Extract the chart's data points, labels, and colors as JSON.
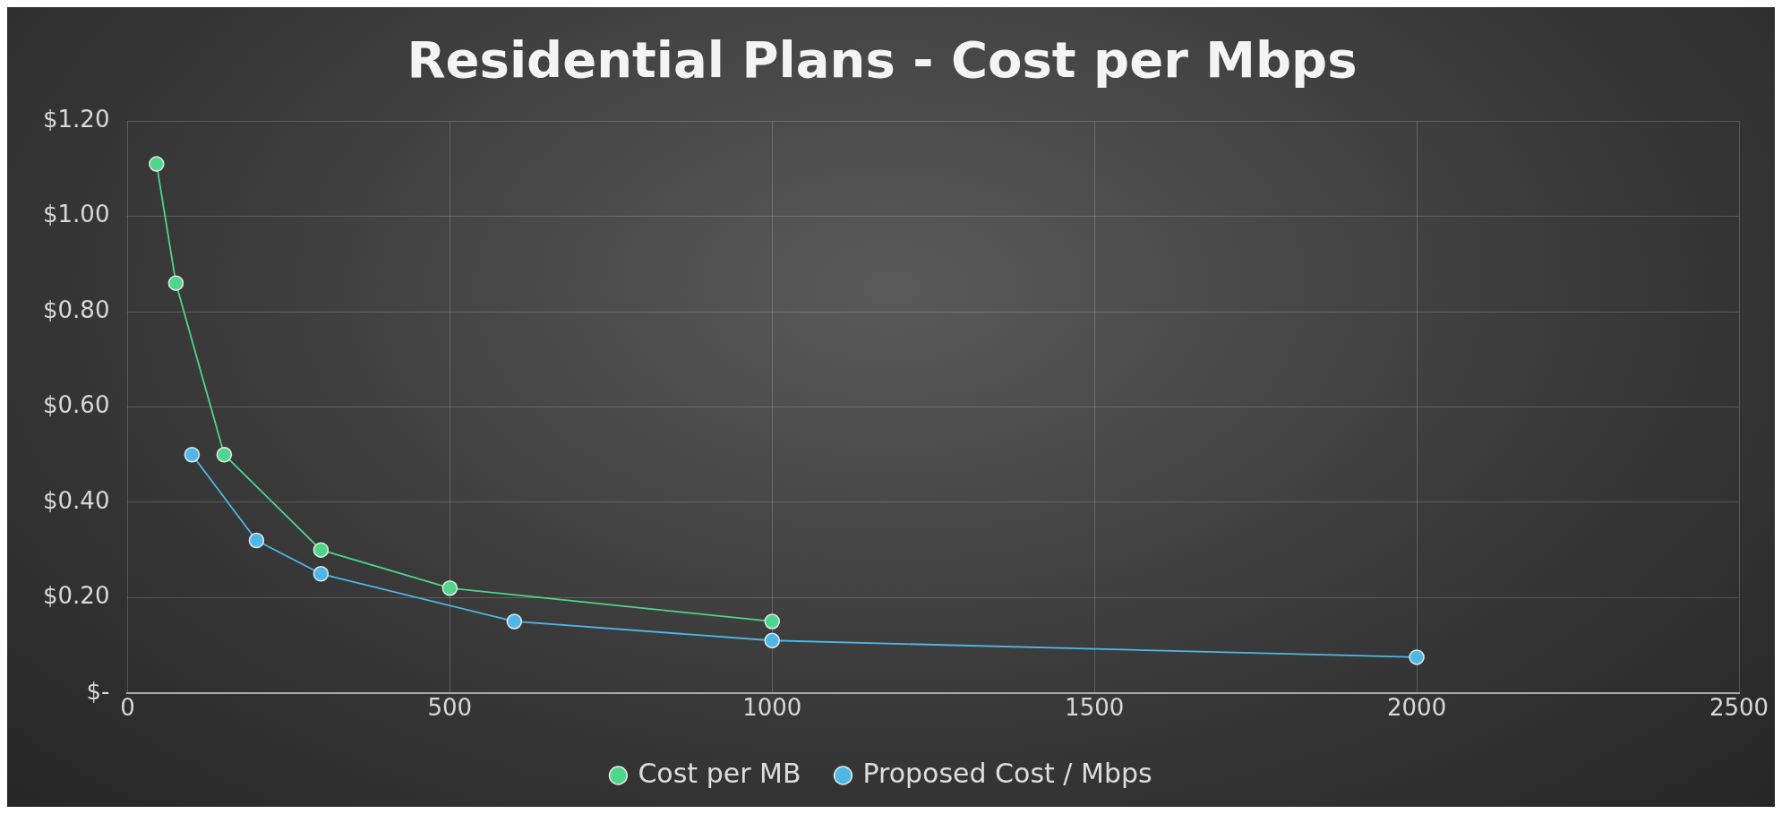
{
  "chart_data": {
    "type": "line",
    "title": "Residential Plans - Cost per Mbps",
    "series": [
      {
        "name": "Cost per MB",
        "color": "#4fd68a",
        "x": [
          45,
          75,
          150,
          300,
          500,
          1000
        ],
        "values": [
          1.11,
          0.86,
          0.5,
          0.3,
          0.22,
          0.15
        ]
      },
      {
        "name": "Proposed Cost / Mbps",
        "color": "#4db8e8",
        "x": [
          100,
          200,
          300,
          600,
          1000,
          2000
        ],
        "values": [
          0.5,
          0.32,
          0.25,
          0.15,
          0.11,
          0.075
        ]
      }
    ],
    "xlim": [
      0,
      2500
    ],
    "xticks": [
      0,
      500,
      1000,
      1500,
      2000,
      2500
    ],
    "ylim": [
      0,
      1.2
    ],
    "yticks": [
      {
        "value": 0,
        "label": "$-"
      },
      {
        "value": 0.2,
        "label": "$0.20"
      },
      {
        "value": 0.4,
        "label": "$0.40"
      },
      {
        "value": 0.6,
        "label": "$0.60"
      },
      {
        "value": 0.8,
        "label": "$0.80"
      },
      {
        "value": 1,
        "label": "$1.00"
      },
      {
        "value": 1.2,
        "label": "$1.20"
      }
    ],
    "grid": true,
    "legend": "bottom",
    "marker": "circle",
    "line_style": "solid"
  }
}
